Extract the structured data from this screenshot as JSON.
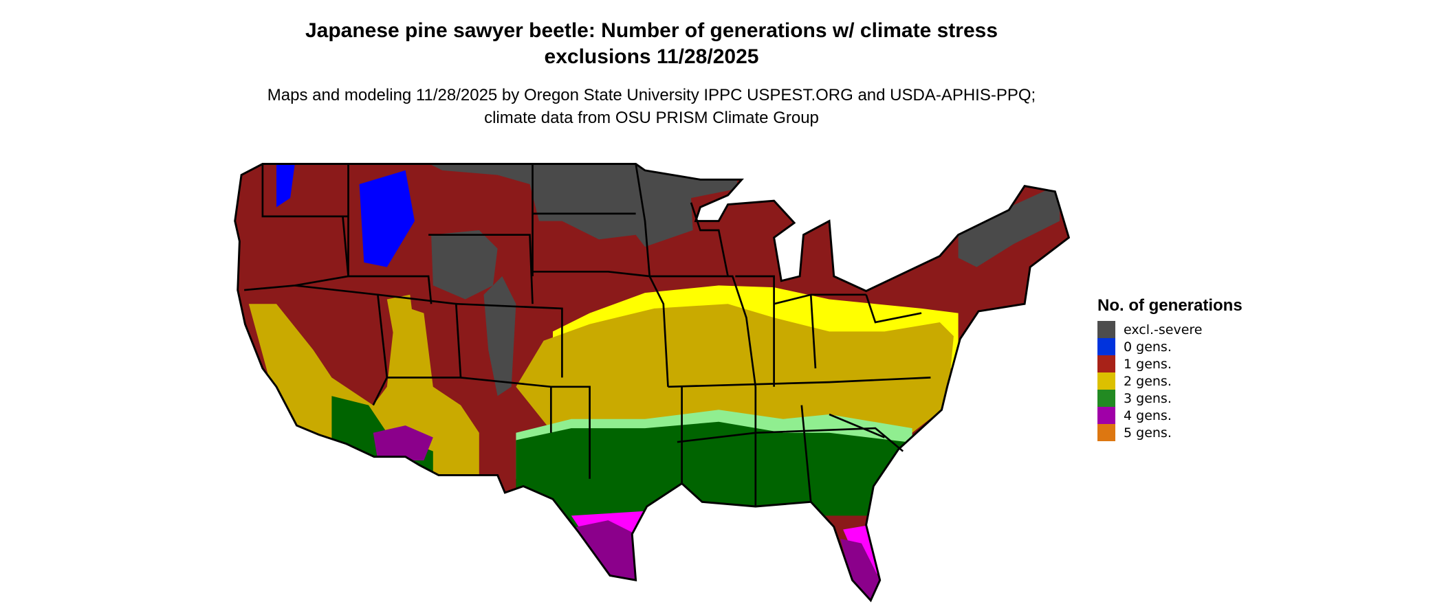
{
  "title": "Japanese pine sawyer beetle: Number of generations w/ climate stress exclusions 11/28/2025",
  "subtitle": "Maps and modeling 11/28/2025 by Oregon State University IPPC USPEST.ORG and USDA-APHIS-PPQ; climate data from OSU PRISM Climate Group",
  "legend": {
    "title": "No. of generations",
    "items": [
      {
        "label": "excl.-severe",
        "color": "#4d4d4d"
      },
      {
        "label": "0 gens.",
        "color": "#0033dd"
      },
      {
        "label": "1 gens.",
        "color": "#a82218"
      },
      {
        "label": "2 gens.",
        "color": "#dcc000"
      },
      {
        "label": "3 gens.",
        "color": "#228a22"
      },
      {
        "label": "4 gens.",
        "color": "#a000a8"
      },
      {
        "label": "5 gens.",
        "color": "#dd7711"
      }
    ]
  },
  "map_colors": {
    "excluded": "#4a4a4a",
    "one": "#8b1a1a",
    "two": "#c9aa00",
    "two_edge": "#ffff00",
    "three": "#006400",
    "three_edge": "#90ee90",
    "four": "#8b008b",
    "four_edge": "#ff00ff",
    "zero": "#0000ff",
    "border": "#000000"
  }
}
